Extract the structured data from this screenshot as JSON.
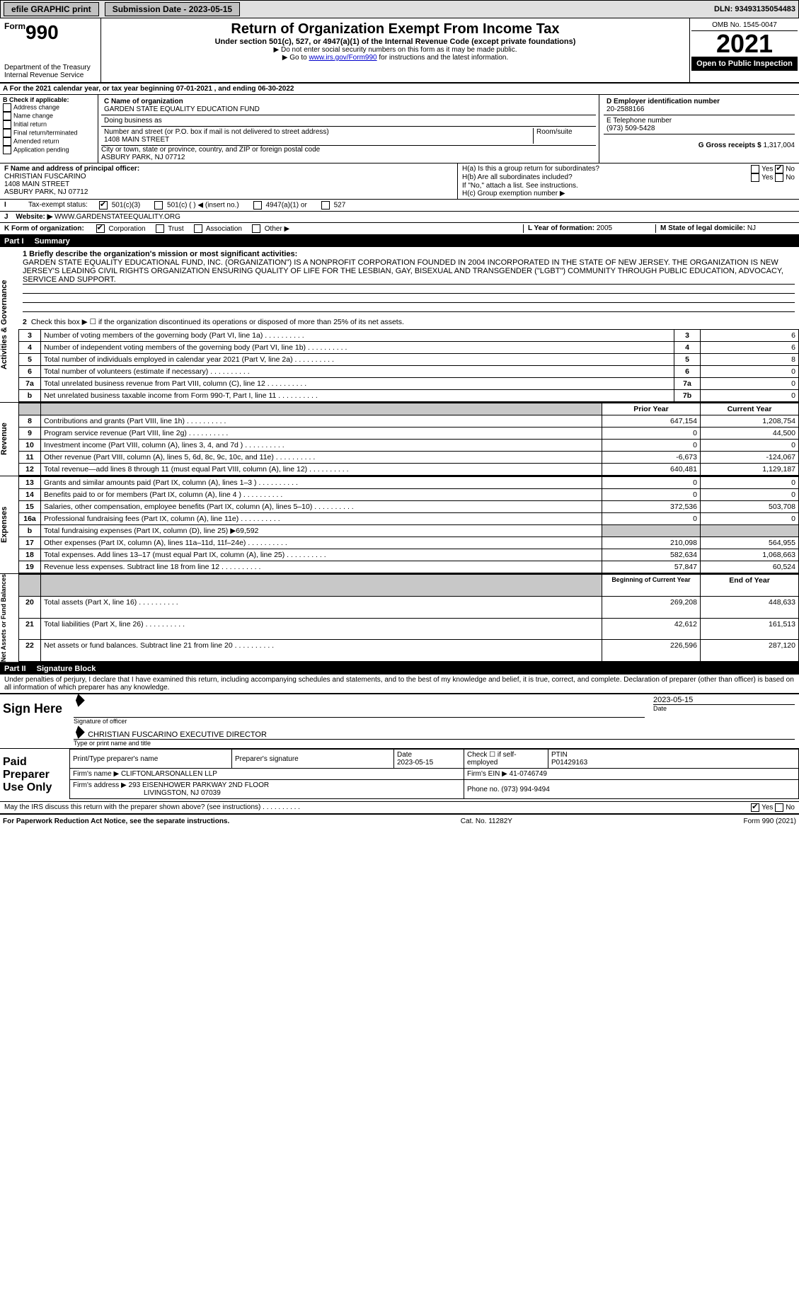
{
  "topbar": {
    "efile_label": "efile GRAPHIC print",
    "submission_label": "Submission Date - 2023-05-15",
    "dln": "DLN: 93493135054483"
  },
  "header": {
    "form_prefix": "Form",
    "form_number": "990",
    "title": "Return of Organization Exempt From Income Tax",
    "subtitle": "Under section 501(c), 527, or 4947(a)(1) of the Internal Revenue Code (except private foundations)",
    "note1": "▶ Do not enter social security numbers on this form as it may be made public.",
    "note2_pre": "▶ Go to ",
    "note2_link": "www.irs.gov/Form990",
    "note2_post": " for instructions and the latest information.",
    "dept": "Department of the Treasury",
    "irs": "Internal Revenue Service",
    "omb": "OMB No. 1545-0047",
    "year": "2021",
    "open_pub": "Open to Public Inspection"
  },
  "line_a": "A For the 2021 calendar year, or tax year beginning 07-01-2021    , and ending 06-30-2022",
  "box_b": {
    "label": "B Check if applicable:",
    "items": [
      "Address change",
      "Name change",
      "Initial return",
      "Final return/terminated",
      "Amended return",
      "Application pending"
    ]
  },
  "box_c": {
    "label": "C Name of organization",
    "org_name": "GARDEN STATE EQUALITY EDUCATION FUND",
    "dba_label": "Doing business as",
    "addr_label": "Number and street (or P.O. box if mail is not delivered to street address)",
    "room_label": "Room/suite",
    "street": "1408 MAIN STREET",
    "city_label": "City or town, state or province, country, and ZIP or foreign postal code",
    "city": "ASBURY PARK, NJ  07712"
  },
  "box_d": {
    "label": "D Employer identification number",
    "value": "20-2588166"
  },
  "box_e": {
    "label": "E Telephone number",
    "value": "(973) 509-5428"
  },
  "box_g": {
    "label": "G Gross receipts $",
    "value": "1,317,004"
  },
  "box_f": {
    "label": "F Name and address of principal officer:",
    "name": "CHRISTIAN FUSCARINO",
    "street": "1408 MAIN STREET",
    "city": "ASBURY PARK, NJ  07712"
  },
  "box_h": {
    "a_label": "H(a)  Is this a group return for subordinates?",
    "b_label": "H(b)  Are all subordinates included?",
    "b_note": "If \"No,\" attach a list. See instructions.",
    "c_label": "H(c)  Group exemption number ▶",
    "yes": "Yes",
    "no": "No",
    "a_checked": "No"
  },
  "box_i": {
    "label": "Tax-exempt status:",
    "opts": [
      "501(c)(3)",
      "501(c) (   ) ◀ (insert no.)",
      "4947(a)(1) or",
      "527"
    ],
    "checked_index": 0
  },
  "box_j": {
    "label": "Website: ▶",
    "value": "WWW.GARDENSTATEEQUALITY.ORG"
  },
  "box_k": {
    "label": "K Form of organization:",
    "opts": [
      "Corporation",
      "Trust",
      "Association",
      "Other ▶"
    ],
    "checked_index": 0
  },
  "box_l": {
    "label": "L Year of formation:",
    "value": "2005"
  },
  "box_m": {
    "label": "M State of legal domicile:",
    "value": "NJ"
  },
  "part1": {
    "header_num": "Part I",
    "header_title": "Summary",
    "mission_label": "1 Briefly describe the organization's mission or most significant activities:",
    "mission_text": "GARDEN STATE EQUALITY EDUCATIONAL FUND, INC. (ORGANIZATION\") IS A NONPROFIT CORPORATION FOUNDED IN 2004 INCORPORATED IN THE STATE OF NEW JERSEY. THE ORGANIZATION IS NEW JERSEY'S LEADING CIVIL RIGHTS ORGANIZATION ENSURING QUALITY OF LIFE FOR THE LESBIAN, GAY, BISEXUAL AND TRANSGENDER (\"LGBT\") COMMUNITY THROUGH PUBLIC EDUCATION, ADVOCACY, SERVICE AND SUPPORT.",
    "line2": "Check this box ▶ ☐ if the organization discontinued its operations or disposed of more than 25% of its net assets.",
    "side_labels": {
      "gov": "Activities & Governance",
      "rev": "Revenue",
      "exp": "Expenses",
      "net": "Net Assets or Fund Balances"
    },
    "gov_rows": [
      {
        "n": "3",
        "t": "Number of voting members of the governing body (Part VI, line 1a)",
        "box": "3",
        "v": "6"
      },
      {
        "n": "4",
        "t": "Number of independent voting members of the governing body (Part VI, line 1b)",
        "box": "4",
        "v": "6"
      },
      {
        "n": "5",
        "t": "Total number of individuals employed in calendar year 2021 (Part V, line 2a)",
        "box": "5",
        "v": "8"
      },
      {
        "n": "6",
        "t": "Total number of volunteers (estimate if necessary)",
        "box": "6",
        "v": "0"
      },
      {
        "n": "7a",
        "t": "Total unrelated business revenue from Part VIII, column (C), line 12",
        "box": "7a",
        "v": "0"
      },
      {
        "n": "b",
        "t": "Net unrelated business taxable income from Form 990-T, Part I, line 11",
        "box": "7b",
        "v": "0"
      }
    ],
    "col_headers": {
      "prior": "Prior Year",
      "current": "Current Year"
    },
    "rev_rows": [
      {
        "n": "8",
        "t": "Contributions and grants (Part VIII, line 1h)",
        "p": "647,154",
        "c": "1,208,754"
      },
      {
        "n": "9",
        "t": "Program service revenue (Part VIII, line 2g)",
        "p": "0",
        "c": "44,500"
      },
      {
        "n": "10",
        "t": "Investment income (Part VIII, column (A), lines 3, 4, and 7d )",
        "p": "0",
        "c": "0"
      },
      {
        "n": "11",
        "t": "Other revenue (Part VIII, column (A), lines 5, 6d, 8c, 9c, 10c, and 11e)",
        "p": "-6,673",
        "c": "-124,067"
      },
      {
        "n": "12",
        "t": "Total revenue—add lines 8 through 11 (must equal Part VIII, column (A), line 12)",
        "p": "640,481",
        "c": "1,129,187"
      }
    ],
    "exp_rows": [
      {
        "n": "13",
        "t": "Grants and similar amounts paid (Part IX, column (A), lines 1–3 )",
        "p": "0",
        "c": "0"
      },
      {
        "n": "14",
        "t": "Benefits paid to or for members (Part IX, column (A), line 4 )",
        "p": "0",
        "c": "0"
      },
      {
        "n": "15",
        "t": "Salaries, other compensation, employee benefits (Part IX, column (A), lines 5–10)",
        "p": "372,536",
        "c": "503,708"
      },
      {
        "n": "16a",
        "t": "Professional fundraising fees (Part IX, column (A), line 11e)",
        "p": "0",
        "c": "0"
      },
      {
        "n": "b",
        "t": "Total fundraising expenses (Part IX, column (D), line 25) ▶69,592",
        "p": "",
        "c": "",
        "grey": true
      },
      {
        "n": "17",
        "t": "Other expenses (Part IX, column (A), lines 11a–11d, 11f–24e)",
        "p": "210,098",
        "c": "564,955"
      },
      {
        "n": "18",
        "t": "Total expenses. Add lines 13–17 (must equal Part IX, column (A), line 25)",
        "p": "582,634",
        "c": "1,068,663"
      },
      {
        "n": "19",
        "t": "Revenue less expenses. Subtract line 18 from line 12",
        "p": "57,847",
        "c": "60,524"
      }
    ],
    "net_headers": {
      "begin": "Beginning of Current Year",
      "end": "End of Year"
    },
    "net_rows": [
      {
        "n": "20",
        "t": "Total assets (Part X, line 16)",
        "p": "269,208",
        "c": "448,633"
      },
      {
        "n": "21",
        "t": "Total liabilities (Part X, line 26)",
        "p": "42,612",
        "c": "161,513"
      },
      {
        "n": "22",
        "t": "Net assets or fund balances. Subtract line 21 from line 20",
        "p": "226,596",
        "c": "287,120"
      }
    ]
  },
  "part2": {
    "header_num": "Part II",
    "header_title": "Signature Block",
    "penalties": "Under penalties of perjury, I declare that I have examined this return, including accompanying schedules and statements, and to the best of my knowledge and belief, it is true, correct, and complete. Declaration of preparer (other than officer) is based on all information of which preparer has any knowledge.",
    "sign_here": "Sign Here",
    "sig_officer": "Signature of officer",
    "sig_date": "Date",
    "sig_date_val": "2023-05-15",
    "officer_name": "CHRISTIAN FUSCARINO  EXECUTIVE DIRECTOR",
    "type_name": "Type or print name and title",
    "paid_prep": "Paid Preparer Use Only",
    "prep_name_label": "Print/Type preparer's name",
    "prep_sig_label": "Preparer's signature",
    "date_label": "Date",
    "date_val": "2023-05-15",
    "check_self": "Check ☐ if self-employed",
    "ptin_label": "PTIN",
    "ptin": "P01429163",
    "firm_name_label": "Firm's name    ▶",
    "firm_name": "CLIFTONLARSONALLEN LLP",
    "firm_ein_label": "Firm's EIN ▶",
    "firm_ein": "41-0746749",
    "firm_addr_label": "Firm's address ▶",
    "firm_addr": "293 EISENHOWER PARKWAY 2ND FLOOR",
    "firm_city": "LIVINGSTON, NJ  07039",
    "phone_label": "Phone no.",
    "phone": "(973) 994-9494",
    "discuss": "May the IRS discuss this return with the preparer shown above? (see instructions)",
    "discuss_yes": "Yes",
    "discuss_no": "No"
  },
  "footer": {
    "left": "For Paperwork Reduction Act Notice, see the separate instructions.",
    "mid": "Cat. No. 11282Y",
    "right": "Form 990 (2021)"
  }
}
